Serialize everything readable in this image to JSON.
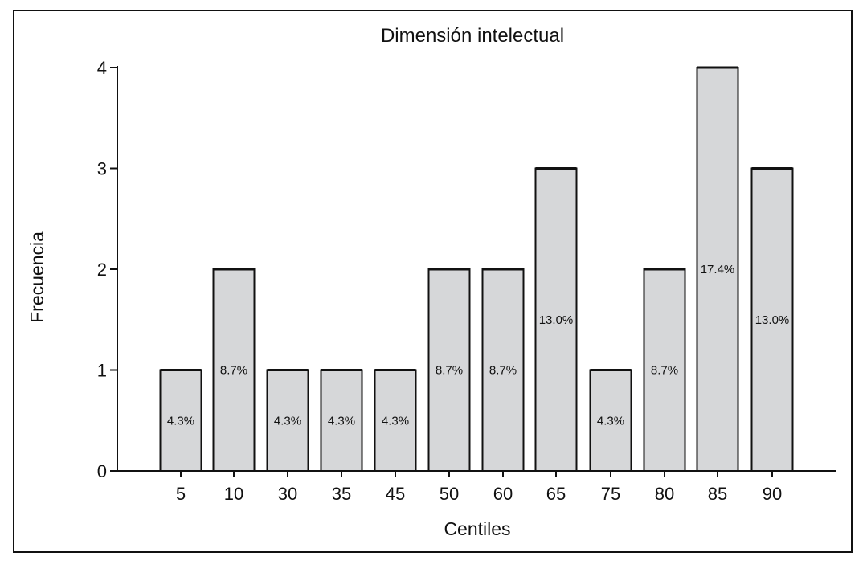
{
  "chart_data": {
    "type": "bar",
    "title": "Dimensión intelectual",
    "xlabel": "Centiles",
    "ylabel": "Frecuencia",
    "ylim": [
      0,
      4
    ],
    "yticks": [
      "0",
      "1",
      "2",
      "3",
      "4"
    ],
    "categories": [
      "5",
      "10",
      "30",
      "35",
      "45",
      "50",
      "60",
      "65",
      "75",
      "80",
      "85",
      "90"
    ],
    "values": [
      1,
      2,
      1,
      1,
      1,
      2,
      2,
      3,
      1,
      2,
      4,
      3
    ],
    "data_labels": [
      "4.3%",
      "8.7%",
      "4.3%",
      "4.3%",
      "4.3%",
      "8.7%",
      "8.7%",
      "13.0%",
      "4.3%",
      "8.7%",
      "17.4%",
      "13.0%"
    ],
    "colors": {
      "bar_fill": "#d6d7d9",
      "bar_stroke": "#111111"
    },
    "grid": false,
    "legend": "none"
  }
}
